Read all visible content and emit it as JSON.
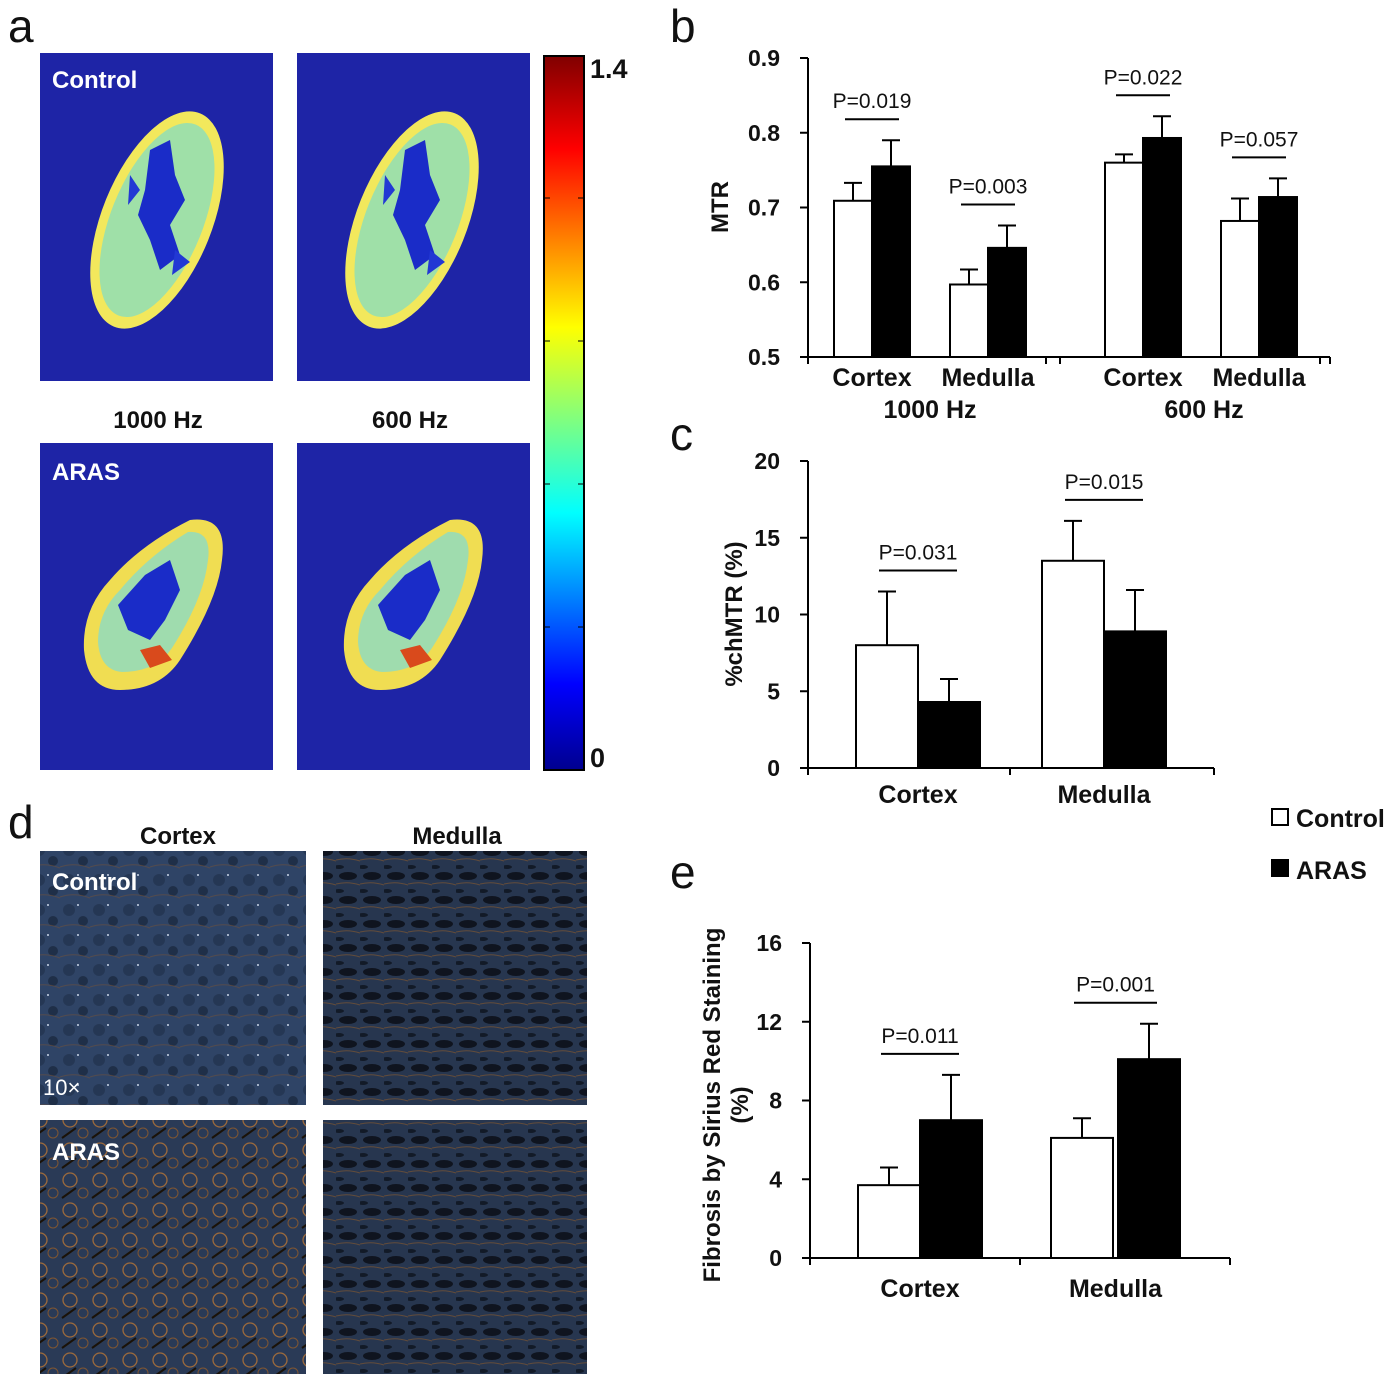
{
  "panel_letters": {
    "a": "a",
    "b": "b",
    "c": "c",
    "d": "d",
    "e": "e"
  },
  "colors": {
    "map_background": "#1e24a6",
    "control_bar": "#ffffff",
    "aras_bar": "#000000",
    "axis": "#000000"
  },
  "panel_a": {
    "control_label": "Control",
    "aras_label": "ARAS",
    "freq_left": "1000 Hz",
    "freq_right": "600 Hz",
    "colorbar": {
      "max_label": "1.4",
      "min_label": "0",
      "range": [
        0,
        1.4
      ]
    }
  },
  "panel_d": {
    "col_cortex": "Cortex",
    "col_medulla": "Medulla",
    "row_control": "Control",
    "row_aras": "ARAS",
    "magnification": "10×"
  },
  "legend": {
    "control": "Control",
    "aras": "ARAS"
  },
  "chart_data": [
    {
      "panel": "b",
      "type": "bar",
      "ylabel": "MTR",
      "ylim": [
        0.5,
        0.9
      ],
      "yticks": [
        0.5,
        0.6,
        0.7,
        0.8,
        0.9
      ],
      "ytick_labels": [
        "0.5",
        "0.6",
        "0.7",
        "0.8",
        "0.9"
      ],
      "group_labels": [
        "1000 Hz",
        "600 Hz"
      ],
      "categories": [
        "Cortex",
        "Medulla",
        "Cortex",
        "Medulla"
      ],
      "series": [
        {
          "name": "Control",
          "values": [
            0.709,
            0.597,
            0.76,
            0.682
          ],
          "errors": [
            0.024,
            0.02,
            0.011,
            0.03
          ]
        },
        {
          "name": "ARAS",
          "values": [
            0.755,
            0.646,
            0.793,
            0.714
          ],
          "errors": [
            0.035,
            0.03,
            0.029,
            0.025
          ]
        }
      ],
      "pvalues": [
        "P=0.019",
        "P=0.003",
        "P=0.022",
        "P=0.057"
      ]
    },
    {
      "panel": "c",
      "type": "bar",
      "ylabel": "%chMTR (%)",
      "ylim": [
        0,
        20
      ],
      "yticks": [
        0,
        5,
        10,
        15,
        20
      ],
      "ytick_labels": [
        "0",
        "5",
        "10",
        "15",
        "20"
      ],
      "categories": [
        "Cortex",
        "Medulla"
      ],
      "series": [
        {
          "name": "Control",
          "values": [
            8.0,
            13.5
          ],
          "errors": [
            3.5,
            2.6
          ]
        },
        {
          "name": "ARAS",
          "values": [
            4.3,
            8.9
          ],
          "errors": [
            1.5,
            2.7
          ]
        }
      ],
      "pvalues": [
        "P=0.031",
        "P=0.015"
      ]
    },
    {
      "panel": "e",
      "type": "bar",
      "ylabel": "Fibrosis by Sirius Red Staining (%)",
      "ylabel_lines": [
        "Fibrosis by Sirius Red Staining",
        "(%)"
      ],
      "ylim": [
        0,
        16
      ],
      "yticks": [
        0,
        4,
        8,
        12,
        16
      ],
      "ytick_labels": [
        "0",
        "4",
        "8",
        "12",
        "16"
      ],
      "categories": [
        "Cortex",
        "Medulla"
      ],
      "series": [
        {
          "name": "Control",
          "values": [
            3.7,
            6.1
          ],
          "errors": [
            0.9,
            1.0
          ]
        },
        {
          "name": "ARAS",
          "values": [
            7.0,
            10.1
          ],
          "errors": [
            2.3,
            1.8
          ]
        }
      ],
      "pvalues": [
        "P=0.011",
        "P=0.001"
      ]
    }
  ]
}
